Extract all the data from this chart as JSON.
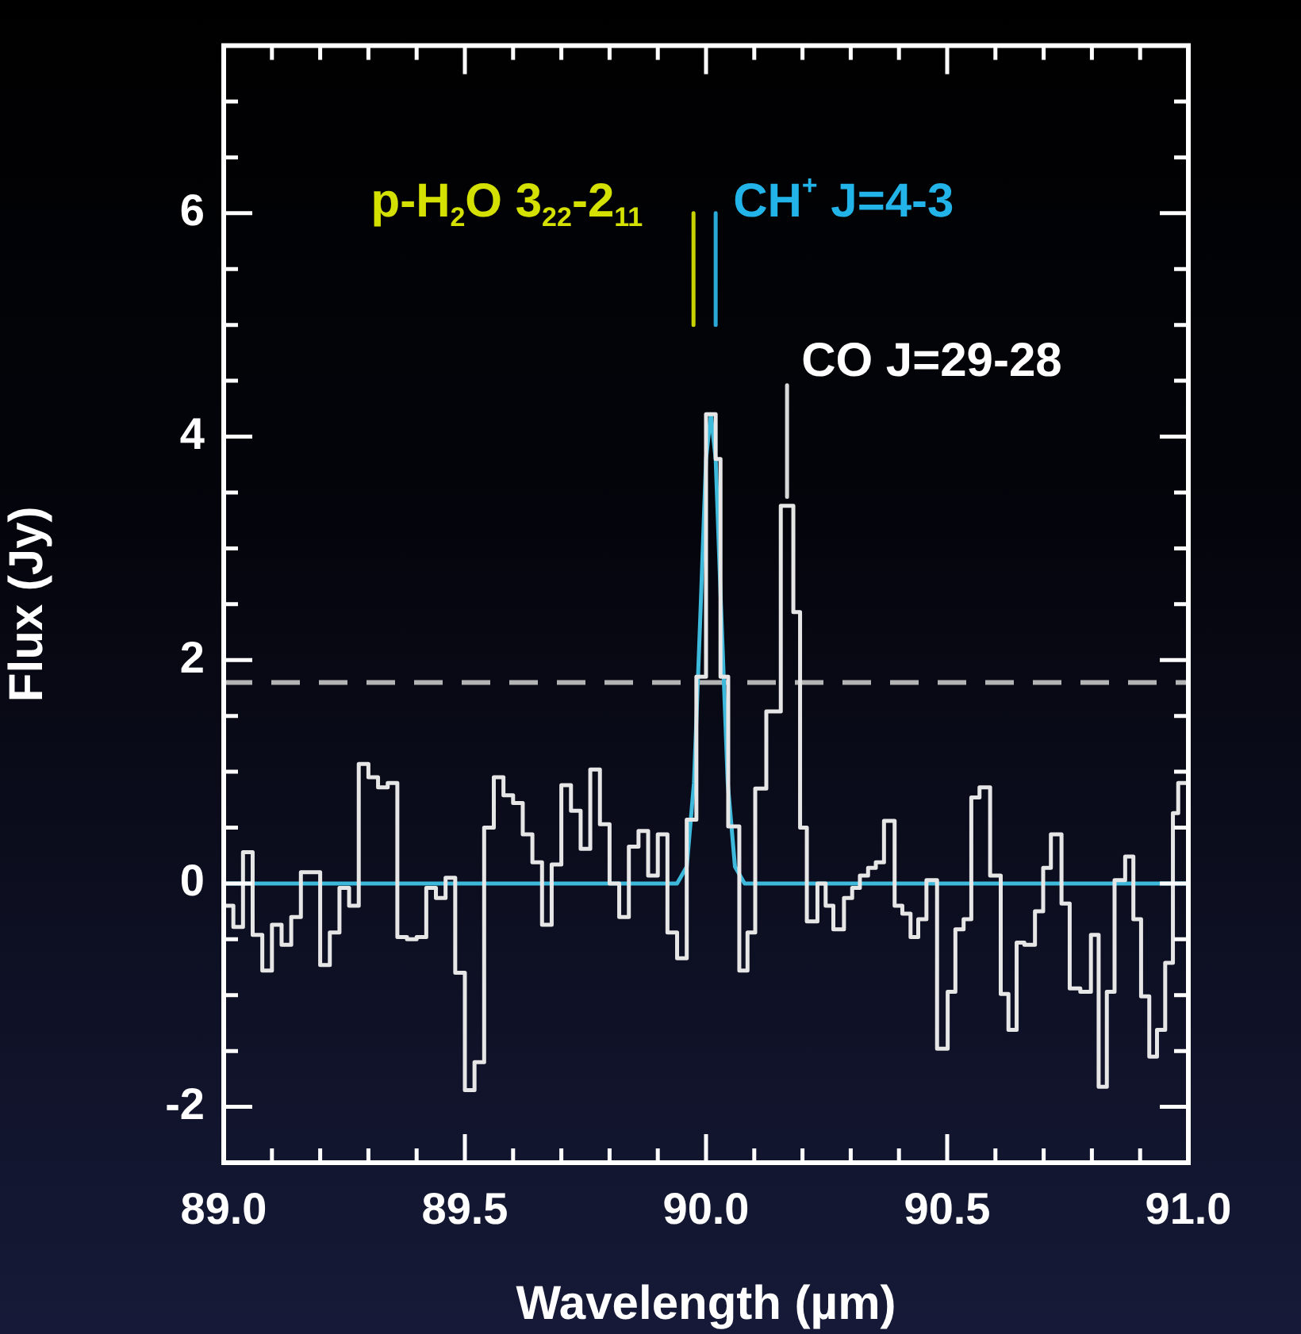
{
  "chart_data": {
    "type": "step",
    "xlabel": "Wavelength (µm)",
    "ylabel": "Flux (Jy)",
    "xlim": [
      89,
      91
    ],
    "ylim": [
      -2.5,
      7.5
    ],
    "xticks": [
      {
        "value": 89,
        "label": "89.0"
      },
      {
        "value": 89.1,
        "label": null
      },
      {
        "value": 89.2,
        "label": null
      },
      {
        "value": 89.3,
        "label": null
      },
      {
        "value": 89.4,
        "label": null
      },
      {
        "value": 89.5,
        "label": "89.5"
      },
      {
        "value": 89.6,
        "label": null
      },
      {
        "value": 89.7,
        "label": null
      },
      {
        "value": 89.8,
        "label": null
      },
      {
        "value": 89.9,
        "label": null
      },
      {
        "value": 90,
        "label": "90.0"
      },
      {
        "value": 90.1,
        "label": null
      },
      {
        "value": 90.2,
        "label": null
      },
      {
        "value": 90.3,
        "label": null
      },
      {
        "value": 90.4,
        "label": null
      },
      {
        "value": 90.5,
        "label": "90.5"
      },
      {
        "value": 90.6,
        "label": null
      },
      {
        "value": 90.7,
        "label": null
      },
      {
        "value": 90.8,
        "label": null
      },
      {
        "value": 90.9,
        "label": null
      },
      {
        "value": 91,
        "label": "91.0"
      }
    ],
    "yticks": [
      -2,
      {
        "value": -1.5,
        "label": null
      },
      {
        "value": -1,
        "label": null
      },
      {
        "value": -0.5,
        "label": null
      },
      0,
      {
        "value": 0.5,
        "label": null
      },
      {
        "value": 1,
        "label": null
      },
      {
        "value": 1.5,
        "label": null
      },
      2,
      {
        "value": 2.5,
        "label": null
      },
      {
        "value": 3,
        "label": null
      },
      {
        "value": 3.5,
        "label": null
      },
      4,
      {
        "value": 4.5,
        "label": null
      },
      {
        "value": 5,
        "label": null
      },
      {
        "value": 5.5,
        "label": null
      },
      6,
      {
        "value": 6.5,
        "label": null
      },
      {
        "value": 7,
        "label": null
      }
    ],
    "grid": false,
    "legend": false,
    "marker": "none",
    "ref_lines": [
      {
        "axis": "y",
        "value": 1.8,
        "color": "#b4b4b4",
        "line_style": "dashed"
      }
    ],
    "annotations": [
      {
        "text": "p-H$_{2}$O 3$_{22}$-2$_{11}$",
        "x": 89.974,
        "y": 6
      },
      {
        "text": "CH$^{+}$ J=4-3",
        "x": 90.02,
        "y": 6
      },
      {
        "text": "CO J=29-28",
        "x": 90.168,
        "y": 4.46
      }
    ],
    "series": [
      {
        "color": "#e6e6e6",
        "x": [
          89,
          89.02,
          89.04,
          89.06,
          89.08,
          89.1,
          89.12,
          89.14,
          89.16,
          89.18,
          89.2,
          89.22,
          89.24,
          89.26,
          89.28,
          89.3,
          89.32,
          89.34,
          89.36,
          89.38,
          89.4,
          89.42,
          89.44,
          89.46,
          89.48,
          89.5,
          89.52,
          89.54,
          89.56,
          89.58,
          89.6,
          89.62,
          89.64,
          89.66,
          89.68,
          89.7,
          89.72,
          89.74,
          89.76,
          89.78,
          89.8,
          89.82,
          89.84,
          89.86,
          89.88,
          89.9,
          89.92,
          89.94,
          89.96,
          89.98,
          90,
          90.02,
          90.03,
          90.046,
          90.069,
          90.086,
          90.102,
          90.125,
          90.155,
          90.181,
          90.195,
          90.209,
          90.231,
          90.248,
          90.264,
          90.286,
          90.303,
          90.319,
          90.336,
          90.352,
          90.369,
          90.391,
          90.407,
          90.424,
          90.44,
          90.457,
          90.479,
          90.501,
          90.517,
          90.534,
          90.55,
          90.567,
          90.589,
          90.611,
          90.627,
          90.644,
          90.66,
          90.682,
          90.699,
          90.715,
          90.737,
          90.754,
          90.776,
          90.798,
          90.814,
          90.831,
          90.847,
          90.869,
          90.886,
          90.902,
          90.919,
          90.935,
          90.952,
          90.968,
          90.979,
          91
        ],
        "values": [
          -0.2,
          -0.39,
          0.28,
          -0.46,
          -0.78,
          -0.37,
          -0.55,
          -0.3,
          0.1,
          0.1,
          -0.73,
          -0.44,
          -0.04,
          -0.2,
          1.07,
          0.95,
          0.86,
          0.9,
          -0.48,
          -0.5,
          -0.48,
          -0.04,
          -0.13,
          0.05,
          -0.8,
          -1.85,
          -1.6,
          0.5,
          0.95,
          0.79,
          0.72,
          0.44,
          0.19,
          -0.37,
          0.17,
          0.88,
          0.65,
          0.31,
          1.02,
          0.53,
          0,
          -0.3,
          0.33,
          0.47,
          0.07,
          0.44,
          -0.44,
          -0.67,
          0.57,
          1.85,
          4.2,
          3.8,
          1.85,
          0.51,
          -0.78,
          -0.44,
          0.85,
          1.54,
          3.38,
          2.43,
          0.5,
          -0.34,
          0,
          -0.2,
          -0.41,
          -0.13,
          -0.04,
          0.07,
          0.14,
          0.19,
          0.56,
          -0.2,
          -0.27,
          -0.48,
          -0.32,
          0.03,
          -1.48,
          -0.97,
          -0.41,
          -0.32,
          0.77,
          0.86,
          0.07,
          -0.99,
          -1.31,
          -0.53,
          -0.55,
          -0.25,
          0.14,
          0.44,
          -0.18,
          -0.94,
          -0.97,
          -0.46,
          -1.82,
          -0.97,
          0.03,
          0.24,
          -0.32,
          -1.01,
          -1.55,
          -1.31,
          -0.71,
          0.63,
          0.9,
          0.9
        ]
      },
      {
        "type": "line",
        "color": "#3db9dc",
        "x": [
          89,
          89.94,
          89.96,
          89.975,
          89.99,
          90,
          90.01,
          90.02,
          90.03,
          90.045,
          90.06,
          90.08,
          91
        ],
        "values": [
          0,
          0,
          0.15,
          0.9,
          2.6,
          3.8,
          4.2,
          3.8,
          2.6,
          0.9,
          0.15,
          0,
          0
        ]
      },
      {
        "type": "line",
        "color": "#c8d200",
        "x": [
          89.974,
          89.974
        ],
        "values": [
          6,
          5
        ]
      },
      {
        "type": "line",
        "color": "#2aa9d6",
        "x": [
          90.02,
          90.02
        ],
        "values": [
          6,
          5
        ]
      },
      {
        "type": "line",
        "color": "#d8d8d8",
        "x": [
          90.168,
          90.168
        ],
        "values": [
          4.46,
          3.46
        ]
      }
    ]
  }
}
